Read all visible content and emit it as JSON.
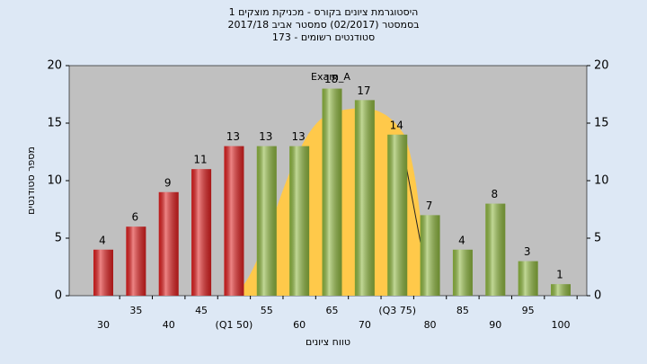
{
  "chart_data": {
    "type": "bar",
    "title": "היסטוגרמת ציונים בקורס - מכניקת מוצקים 1",
    "subtitle": "בסמסטר  (02/2017)  סמסטר אביב 2017/18",
    "subtitle2": "סטודנטים רשומים - 173",
    "annotation": "Exam_A",
    "x_label": "טווח ציונים",
    "y_label": "מספר סטודנטים",
    "categories": [
      "30",
      "35",
      "40",
      "45",
      "(Q1 50)",
      "55",
      "60",
      "65",
      "70",
      "(Q3 75)",
      "80",
      "85",
      "90",
      "95",
      "100"
    ],
    "values": [
      4,
      6,
      9,
      11,
      13,
      13,
      13,
      18,
      17,
      14,
      7,
      4,
      8,
      3,
      1
    ],
    "colors": [
      "#e02020",
      "#e02020",
      "#e02020",
      "#e02020",
      "#e02020",
      "#8fb840",
      "#8fb840",
      "#8fb840",
      "#8fb840",
      "#8fb840",
      "#8fb840",
      "#8fb840",
      "#8fb840",
      "#8fb840",
      "#8fb840"
    ],
    "ylim": [
      0,
      20
    ],
    "yticks": [
      0,
      5,
      10,
      15,
      20
    ],
    "y2lim": [
      0,
      20
    ],
    "y2ticks": [
      0,
      5,
      10,
      15,
      20
    ],
    "grid": false
  }
}
